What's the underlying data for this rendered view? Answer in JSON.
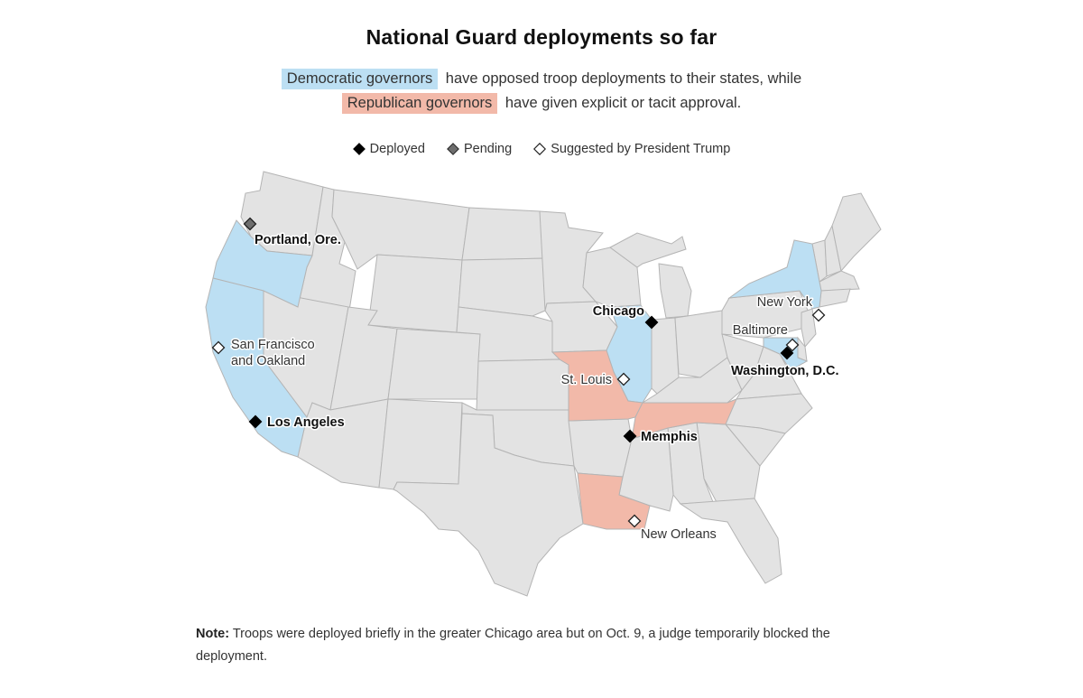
{
  "title": "National Guard deployments so far",
  "subtitle": {
    "dem_label": "Democratic governors",
    "dem_text": "have opposed troop deployments to their states, while",
    "rep_label": "Republican governors",
    "rep_text": "have given explicit or tacit approval."
  },
  "colors": {
    "democratic": "#bcdff3",
    "republican": "#f2b9a9",
    "other": "#e3e3e3",
    "deployed": "#000000",
    "pending": "#6e6e6e",
    "suggested": "#ffffff"
  },
  "legend": [
    {
      "key": "deployed",
      "label": "Deployed"
    },
    {
      "key": "pending",
      "label": "Pending"
    },
    {
      "key": "suggested",
      "label": "Suggested by President Trump"
    }
  ],
  "states": {
    "democratic": [
      "Oregon",
      "California",
      "Illinois",
      "New York",
      "Maryland"
    ],
    "republican": [
      "Missouri",
      "Tennessee",
      "Louisiana"
    ]
  },
  "cities": [
    {
      "name": "Portland, Ore.",
      "status": "pending"
    },
    {
      "name": "San Francisco\nand Oakland",
      "status": "suggested"
    },
    {
      "name": "Los Angeles",
      "status": "deployed"
    },
    {
      "name": "Chicago",
      "status": "deployed"
    },
    {
      "name": "St. Louis",
      "status": "suggested"
    },
    {
      "name": "Memphis",
      "status": "deployed"
    },
    {
      "name": "New Orleans",
      "status": "suggested"
    },
    {
      "name": "New York",
      "status": "suggested"
    },
    {
      "name": "Baltimore",
      "status": "suggested"
    },
    {
      "name": "Washington, D.C.",
      "status": "deployed"
    }
  ],
  "note": {
    "label": "Note:",
    "text": "Troops were deployed briefly in the greater Chicago area but on Oct. 9, a judge temporarily blocked the deployment."
  }
}
